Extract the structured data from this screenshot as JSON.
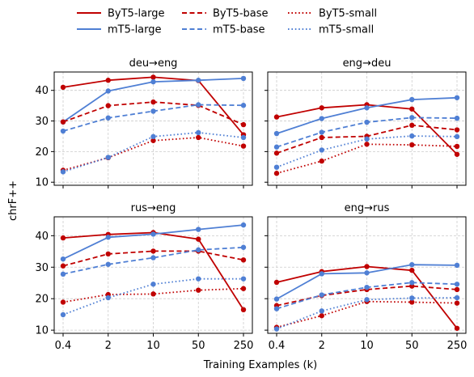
{
  "chart_data": {
    "type": "line",
    "ylabel": "chrF++",
    "xlabel": "Training Examples (k)",
    "x_ticks": [
      "0.4",
      "2",
      "10",
      "50",
      "250"
    ],
    "y_ticks": [
      "10",
      "20",
      "30",
      "40"
    ],
    "ylim": [
      9,
      46
    ],
    "grid": true,
    "legend": {
      "placement": "top-center",
      "entries": [
        {
          "label": "ByT5-large",
          "color": "#c00000",
          "dash": "solid"
        },
        {
          "label": "mT5-large",
          "color": "#4f7fd4",
          "dash": "solid"
        },
        {
          "label": "ByT5-base",
          "color": "#c00000",
          "dash": "dashed"
        },
        {
          "label": "mT5-base",
          "color": "#4f7fd4",
          "dash": "dashed"
        },
        {
          "label": "ByT5-small",
          "color": "#c00000",
          "dash": "dotted"
        },
        {
          "label": "mT5-small",
          "color": "#4f7fd4",
          "dash": "dotted"
        }
      ]
    },
    "panels": [
      {
        "title": "deu→eng",
        "series": [
          {
            "name": "ByT5-large",
            "values": [
              41.0,
              43.3,
              44.3,
              43.2,
              25.5
            ]
          },
          {
            "name": "mT5-large",
            "values": [
              29.7,
              39.8,
              42.8,
              43.3,
              43.9
            ]
          },
          {
            "name": "ByT5-base",
            "values": [
              29.7,
              35.0,
              36.2,
              35.1,
              28.8
            ]
          },
          {
            "name": "mT5-base",
            "values": [
              26.7,
              31.0,
              33.2,
              35.3,
              35.1
            ]
          },
          {
            "name": "ByT5-small",
            "values": [
              13.9,
              18.0,
              23.6,
              24.6,
              21.8
            ]
          },
          {
            "name": "mT5-small",
            "values": [
              13.4,
              18.1,
              24.9,
              26.2,
              24.6
            ]
          }
        ]
      },
      {
        "title": "eng→deu",
        "series": [
          {
            "name": "ByT5-large",
            "values": [
              31.3,
              34.3,
              35.3,
              33.9,
              19.1
            ]
          },
          {
            "name": "mT5-large",
            "values": [
              25.9,
              30.8,
              34.3,
              37.0,
              37.6
            ]
          },
          {
            "name": "ByT5-base",
            "values": [
              19.5,
              24.6,
              25.0,
              28.6,
              27.1
            ]
          },
          {
            "name": "mT5-base",
            "values": [
              21.5,
              26.3,
              29.6,
              31.1,
              30.9
            ]
          },
          {
            "name": "ByT5-small",
            "values": [
              12.9,
              16.9,
              22.4,
              22.2,
              21.7
            ]
          },
          {
            "name": "mT5-small",
            "values": [
              14.9,
              20.5,
              24.1,
              25.1,
              24.9
            ]
          }
        ]
      },
      {
        "title": "rus→eng",
        "series": [
          {
            "name": "ByT5-large",
            "values": [
              39.3,
              40.4,
              41.0,
              38.9,
              16.5
            ]
          },
          {
            "name": "mT5-large",
            "values": [
              32.6,
              39.5,
              40.5,
              42.0,
              43.4
            ]
          },
          {
            "name": "ByT5-base",
            "values": [
              30.4,
              34.2,
              35.1,
              35.1,
              32.3
            ]
          },
          {
            "name": "mT5-base",
            "values": [
              27.8,
              30.9,
              33.0,
              35.5,
              36.3
            ]
          },
          {
            "name": "ByT5-small",
            "values": [
              18.9,
              21.3,
              21.5,
              22.7,
              23.2
            ]
          },
          {
            "name": "mT5-small",
            "values": [
              14.9,
              20.3,
              24.6,
              26.3,
              26.3
            ]
          }
        ]
      },
      {
        "title": "eng→rus",
        "series": [
          {
            "name": "ByT5-large",
            "values": [
              25.2,
              28.6,
              30.2,
              29.0,
              10.6
            ]
          },
          {
            "name": "mT5-large",
            "values": [
              19.9,
              27.9,
              28.2,
              30.8,
              30.6
            ]
          },
          {
            "name": "ByT5-base",
            "values": [
              17.8,
              21.0,
              22.9,
              24.0,
              22.9
            ]
          },
          {
            "name": "mT5-base",
            "values": [
              16.8,
              21.2,
              23.6,
              25.1,
              24.6
            ]
          },
          {
            "name": "ByT5-small",
            "values": [
              10.9,
              14.6,
              19.1,
              18.9,
              18.6
            ]
          },
          {
            "name": "mT5-small",
            "values": [
              10.4,
              16.1,
              19.7,
              20.2,
              20.3
            ]
          }
        ]
      }
    ]
  }
}
